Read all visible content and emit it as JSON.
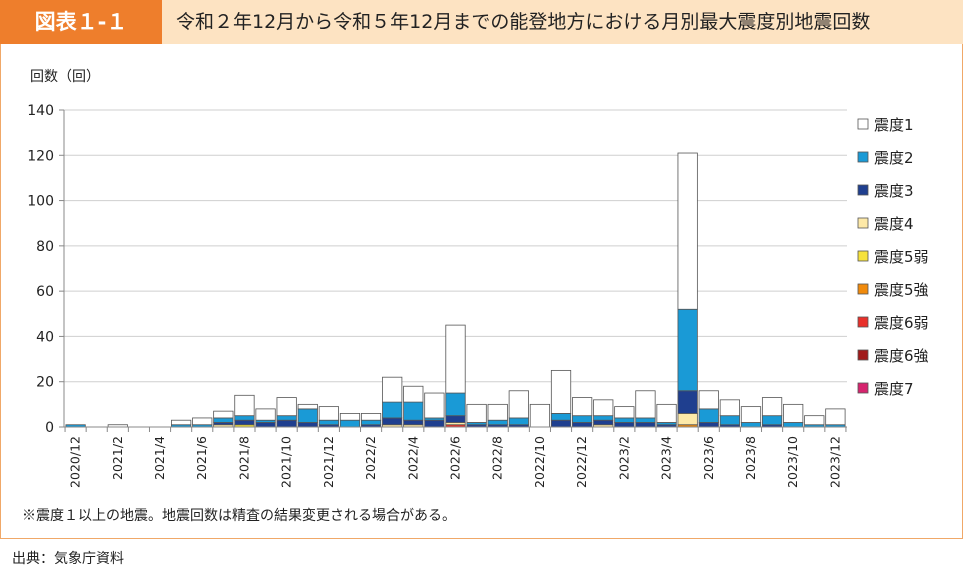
{
  "figure_label": "図表１-１",
  "figure_title": "令和２年12月から令和５年12月までの能登地方における月別最大震度別地震回数",
  "note": "※震度１以上の地震。地震回数は精査の結果変更される場合がある。",
  "source": "出典：気象庁資料",
  "colors": {
    "header_bg": "#fde3c2",
    "label_bg": "#ee7e2c",
    "frame": "#f0a868"
  },
  "chart_data": {
    "type": "bar",
    "stacked": true,
    "ylabel": "回数（回）",
    "ylim": [
      0,
      140
    ],
    "yticks": [
      0,
      20,
      40,
      60,
      80,
      100,
      120,
      140
    ],
    "grid": true,
    "legend_position": "right",
    "categories": [
      "2020/12",
      "2021/1",
      "2021/2",
      "2021/3",
      "2021/4",
      "2021/5",
      "2021/6",
      "2021/7",
      "2021/8",
      "2021/9",
      "2021/10",
      "2021/11",
      "2021/12",
      "2022/1",
      "2022/2",
      "2022/3",
      "2022/4",
      "2022/5",
      "2022/6",
      "2022/7",
      "2022/8",
      "2022/9",
      "2022/10",
      "2022/11",
      "2022/12",
      "2023/1",
      "2023/2",
      "2023/3",
      "2023/4",
      "2023/5",
      "2023/6",
      "2023/7",
      "2023/8",
      "2023/9",
      "2023/10",
      "2023/11",
      "2023/12"
    ],
    "x_tick_labels": [
      "2020/12",
      "2021/2",
      "2021/4",
      "2021/6",
      "2021/8",
      "2021/10",
      "2021/12",
      "2022/2",
      "2022/4",
      "2022/6",
      "2022/8",
      "2022/10",
      "2022/12",
      "2023/2",
      "2023/4",
      "2023/6",
      "2023/8",
      "2023/10",
      "2023/12"
    ],
    "series": [
      {
        "name": "震度7",
        "color": "#d6246e",
        "values": [
          0,
          0,
          0,
          0,
          0,
          0,
          0,
          0,
          0,
          0,
          0,
          0,
          0,
          0,
          0,
          0,
          0,
          0,
          0,
          0,
          0,
          0,
          0,
          0,
          0,
          0,
          0,
          0,
          0,
          0,
          0,
          0,
          0,
          0,
          0,
          0,
          0
        ]
      },
      {
        "name": "震度6強",
        "color": "#a01a1a",
        "values": [
          0,
          0,
          0,
          0,
          0,
          0,
          0,
          0,
          0,
          0,
          0,
          0,
          0,
          0,
          0,
          0,
          0,
          0,
          0,
          0,
          0,
          0,
          0,
          0,
          0,
          0,
          0,
          0,
          0,
          0,
          0,
          0,
          0,
          0,
          0,
          0,
          0
        ]
      },
      {
        "name": "震度6弱",
        "color": "#e8302a",
        "values": [
          0,
          0,
          0,
          0,
          0,
          0,
          0,
          0,
          0,
          0,
          0,
          0,
          0,
          0,
          0,
          0,
          0,
          0,
          1,
          0,
          0,
          0,
          0,
          0,
          0,
          0,
          0,
          0,
          0,
          0,
          0,
          0,
          0,
          0,
          0,
          0,
          0
        ]
      },
      {
        "name": "震度5強",
        "color": "#f08a0c",
        "values": [
          0,
          0,
          0,
          0,
          0,
          0,
          0,
          0,
          0,
          0,
          0,
          0,
          0,
          0,
          0,
          0,
          0,
          0,
          0,
          0,
          0,
          0,
          0,
          0,
          0,
          0,
          0,
          0,
          0,
          1,
          0,
          0,
          0,
          0,
          0,
          0,
          0
        ]
      },
      {
        "name": "震度5弱",
        "color": "#f6e23c",
        "values": [
          0,
          0,
          0,
          0,
          0,
          0,
          0,
          0,
          1,
          0,
          0,
          0,
          0,
          0,
          0,
          0,
          0,
          0,
          0,
          0,
          0,
          0,
          0,
          0,
          0,
          0,
          0,
          0,
          0,
          0,
          0,
          0,
          0,
          0,
          0,
          0,
          0
        ]
      },
      {
        "name": "震度4",
        "color": "#fde9a8",
        "values": [
          0,
          0,
          0,
          0,
          0,
          0,
          0,
          1,
          0,
          0,
          0,
          0,
          0,
          0,
          0,
          1,
          1,
          0,
          1,
          0,
          0,
          0,
          0,
          0,
          0,
          1,
          0,
          0,
          0,
          5,
          0,
          0,
          0,
          0,
          0,
          0,
          0
        ]
      },
      {
        "name": "震度3",
        "color": "#1f3f8f",
        "values": [
          0,
          0,
          0,
          0,
          0,
          0,
          0,
          1,
          2,
          2,
          3,
          2,
          1,
          0,
          1,
          3,
          2,
          3,
          3,
          1,
          1,
          1,
          0,
          3,
          2,
          2,
          2,
          2,
          1,
          10,
          2,
          1,
          0,
          1,
          0,
          0,
          0
        ]
      },
      {
        "name": "震度2",
        "color": "#1a9ad6",
        "values": [
          1,
          0,
          0,
          0,
          0,
          1,
          1,
          2,
          2,
          1,
          2,
          6,
          2,
          3,
          2,
          7,
          8,
          1,
          10,
          1,
          2,
          3,
          0,
          3,
          3,
          2,
          2,
          2,
          1,
          36,
          6,
          4,
          2,
          4,
          2,
          1,
          1
        ]
      },
      {
        "name": "震度1",
        "color": "#ffffff",
        "values": [
          0,
          0,
          1,
          0,
          0,
          2,
          3,
          3,
          9,
          5,
          8,
          2,
          6,
          3,
          3,
          11,
          7,
          11,
          30,
          8,
          7,
          12,
          10,
          19,
          8,
          7,
          5,
          12,
          8,
          69,
          8,
          7,
          7,
          8,
          8,
          4,
          7
        ]
      }
    ]
  }
}
